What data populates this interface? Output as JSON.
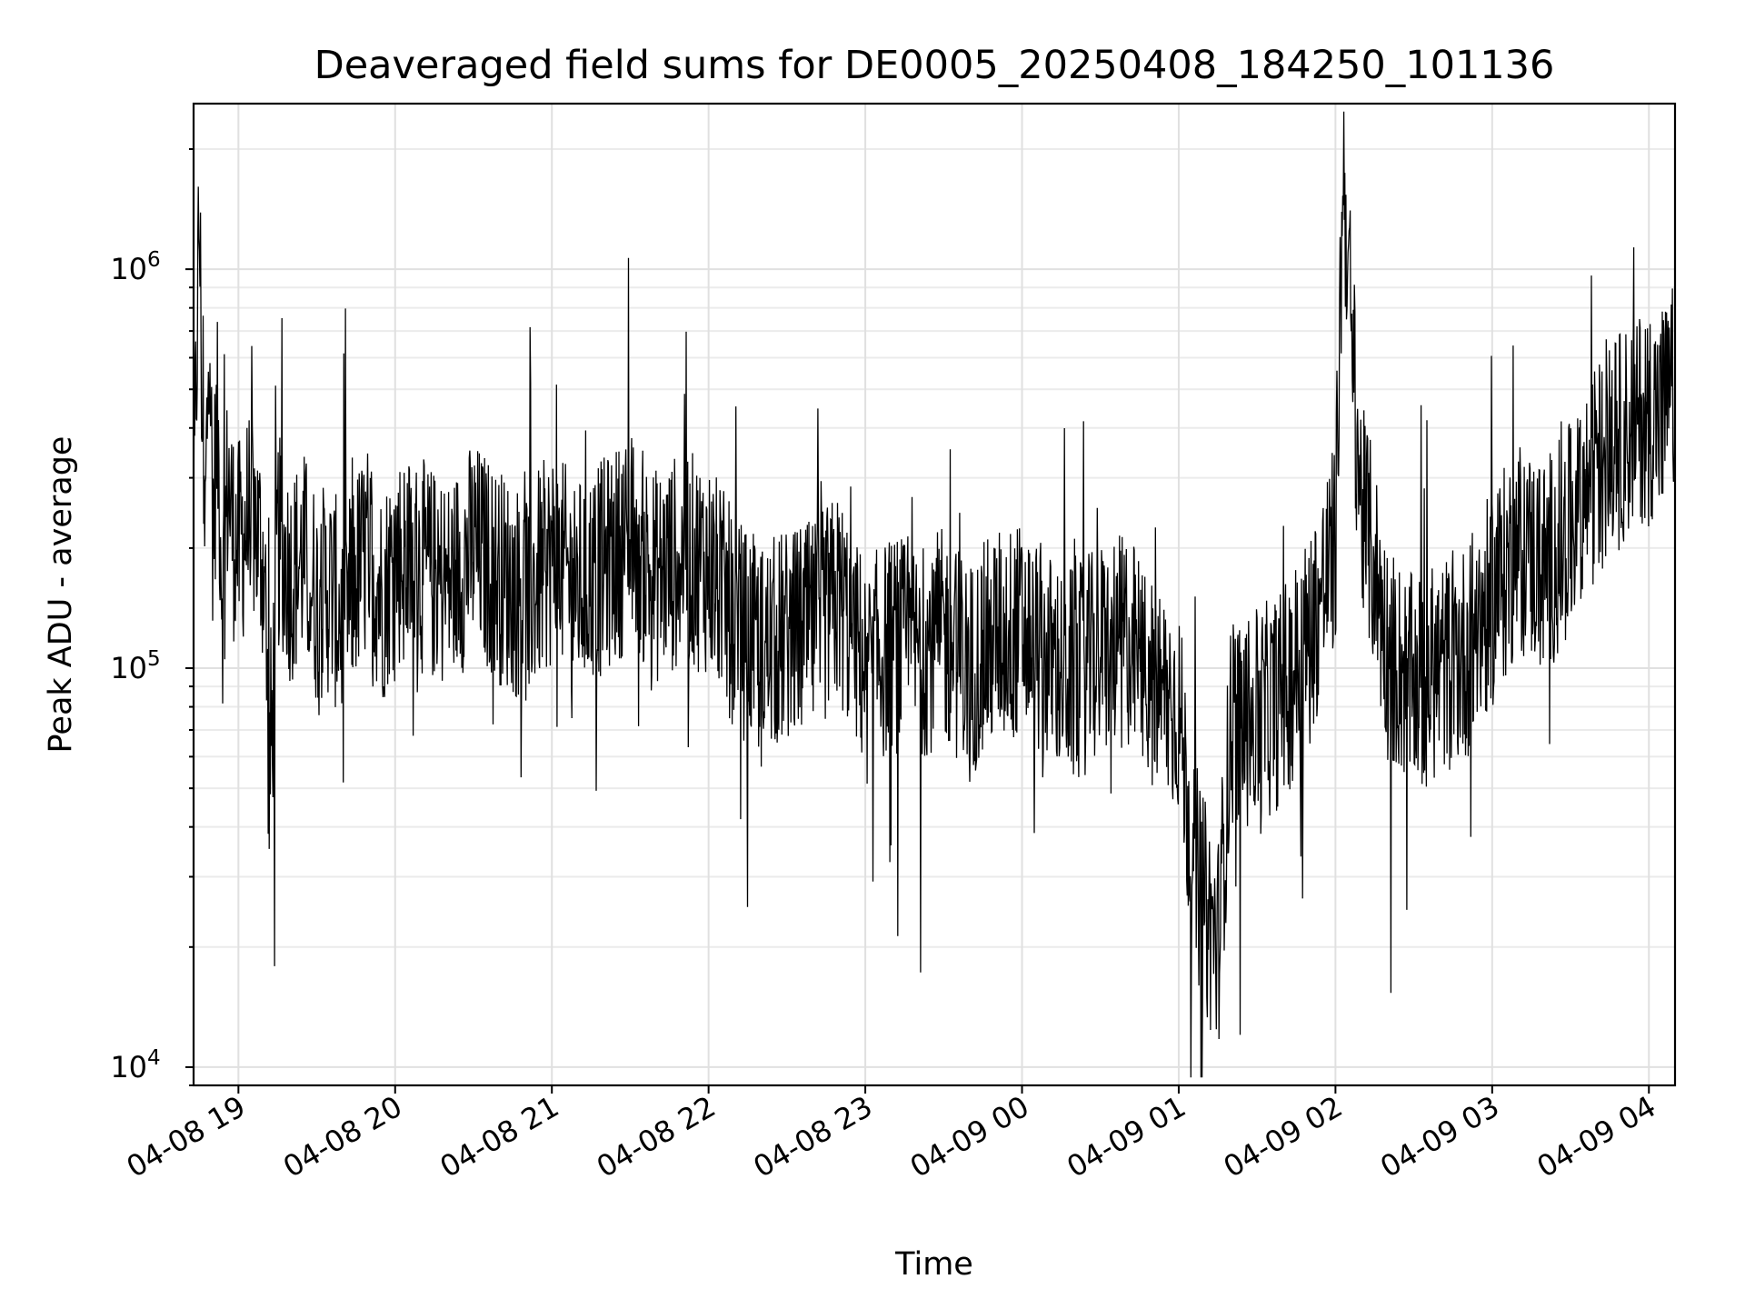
{
  "chart_data": {
    "type": "line",
    "title": "Deaveraged field sums for DE0005_20250408_184250_101136",
    "xlabel": "Time",
    "ylabel": "Peak ADU - average",
    "yscale": "log",
    "xlim": [
      "2025-04-08 18:42:50",
      "2025-04-09 04:10:00"
    ],
    "ylim": [
      9000,
      2600000
    ],
    "grid": true,
    "line_color": "#000000",
    "x_ticks": [
      {
        "t": "2025-04-08 19:00",
        "label": "04-08 19"
      },
      {
        "t": "2025-04-08 20:00",
        "label": "04-08 20"
      },
      {
        "t": "2025-04-08 21:00",
        "label": "04-08 21"
      },
      {
        "t": "2025-04-08 22:00",
        "label": "04-08 22"
      },
      {
        "t": "2025-04-08 23:00",
        "label": "04-08 23"
      },
      {
        "t": "2025-04-09 00:00",
        "label": "04-09 00"
      },
      {
        "t": "2025-04-09 01:00",
        "label": "04-09 01"
      },
      {
        "t": "2025-04-09 02:00",
        "label": "04-09 02"
      },
      {
        "t": "2025-04-09 03:00",
        "label": "04-09 03"
      },
      {
        "t": "2025-04-09 04:00",
        "label": "04-09 04"
      }
    ],
    "y_ticks": [
      {
        "value": 10000,
        "base": "10",
        "exp": "4"
      },
      {
        "value": 100000,
        "base": "10",
        "exp": "5"
      },
      {
        "value": 1000000,
        "base": "10",
        "exp": "6"
      }
    ],
    "series": [
      {
        "x": [
          "2025-04-08 18:43",
          "2025-04-08 18:45",
          "2025-04-08 18:47",
          "2025-04-08 18:49",
          "2025-04-08 18:50",
          "2025-04-08 18:52",
          "2025-04-08 18:54",
          "2025-04-08 18:56",
          "2025-04-08 18:58",
          "2025-04-08 19:00",
          "2025-04-08 19:05",
          "2025-04-08 19:10",
          "2025-04-08 19:12",
          "2025-04-08 19:15",
          "2025-04-08 19:20",
          "2025-04-08 19:25",
          "2025-04-08 19:30",
          "2025-04-08 19:35",
          "2025-04-08 19:40",
          "2025-04-08 19:45",
          "2025-04-08 19:50",
          "2025-04-08 19:55",
          "2025-04-08 20:00",
          "2025-04-08 20:10",
          "2025-04-08 20:20",
          "2025-04-08 20:30",
          "2025-04-08 20:40",
          "2025-04-08 20:50",
          "2025-04-08 21:00",
          "2025-04-08 21:10",
          "2025-04-08 21:20",
          "2025-04-08 21:30",
          "2025-04-08 21:40",
          "2025-04-08 21:50",
          "2025-04-08 22:00",
          "2025-04-08 22:10",
          "2025-04-08 22:20",
          "2025-04-08 22:30",
          "2025-04-08 22:40",
          "2025-04-08 22:50",
          "2025-04-08 23:00",
          "2025-04-08 23:10",
          "2025-04-08 23:20",
          "2025-04-08 23:30",
          "2025-04-08 23:40",
          "2025-04-08 23:50",
          "2025-04-09 00:00",
          "2025-04-09 00:10",
          "2025-04-09 00:20",
          "2025-04-09 00:30",
          "2025-04-09 00:40",
          "2025-04-09 00:50",
          "2025-04-09 01:00",
          "2025-04-09 01:05",
          "2025-04-09 01:10",
          "2025-04-09 01:15",
          "2025-04-09 01:20",
          "2025-04-09 01:30",
          "2025-04-09 01:40",
          "2025-04-09 01:50",
          "2025-04-09 02:00",
          "2025-04-09 02:03",
          "2025-04-09 02:06",
          "2025-04-09 02:10",
          "2025-04-09 02:15",
          "2025-04-09 02:20",
          "2025-04-09 02:30",
          "2025-04-09 02:40",
          "2025-04-09 02:50",
          "2025-04-09 03:00",
          "2025-04-09 03:10",
          "2025-04-09 03:20",
          "2025-04-09 03:30",
          "2025-04-09 03:40",
          "2025-04-09 03:50",
          "2025-04-09 04:00",
          "2025-04-09 04:05",
          "2025-04-09 04:10"
        ],
        "y": [
          250000,
          1400000,
          180000,
          900000,
          220000,
          400000,
          150000,
          300000,
          220000,
          200000,
          250000,
          180000,
          45000,
          210000,
          170000,
          190000,
          150000,
          160000,
          130000,
          170000,
          200000,
          150000,
          190000,
          180000,
          160000,
          200000,
          170000,
          150000,
          190000,
          160000,
          180000,
          210000,
          170000,
          190000,
          180000,
          130000,
          110000,
          120000,
          125000,
          150000,
          100000,
          115000,
          110000,
          120000,
          100000,
          120000,
          125000,
          105000,
          95000,
          110000,
          120000,
          90000,
          80000,
          35000,
          25000,
          20000,
          70000,
          75000,
          85000,
          120000,
          200000,
          1900000,
          700000,
          250000,
          180000,
          110000,
          90000,
          100000,
          110000,
          150000,
          200000,
          180000,
          220000,
          320000,
          380000,
          450000,
          420000,
          500000
        ]
      }
    ]
  }
}
